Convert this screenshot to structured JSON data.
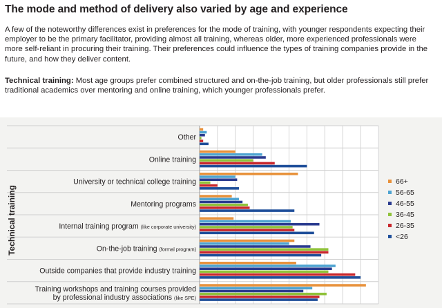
{
  "header": {
    "title": "The mode and method of delivery also varied by age and experience",
    "intro": "A few of the noteworthy differences exist in preferences for the mode of training, with younger respondents expecting their employer to be the primary facilitator, providing almost all training, whereas older, more experienced professionals were more self-reliant in procuring their training. Their preferences could influence the types of training companies provide in the future, and how they deliver content.",
    "technical_label": "Technical training:",
    "technical_text": " Most age groups prefer combined structured and on-the-job training, but older professionals still prefer traditional academics over mentoring and online training, which younger professionals prefer."
  },
  "chart_data": {
    "type": "bar",
    "orientation": "horizontal",
    "title": "",
    "ylabel": "Technical training",
    "xlabel": "",
    "xlim": [
      0,
      100
    ],
    "grid": true,
    "legend_position": "right",
    "categories": [
      {
        "main": "Other",
        "note": ""
      },
      {
        "main": "Online training",
        "note": ""
      },
      {
        "main": "University or technical college training",
        "note": ""
      },
      {
        "main": "Mentoring programs",
        "note": ""
      },
      {
        "main": "Internal training program ",
        "note": "(like corporate university)"
      },
      {
        "main": "On-the-job training ",
        "note": "(formal program)"
      },
      {
        "main": "Outside companies that provide industry training",
        "note": ""
      },
      {
        "main": "Training workshops and training courses provided",
        "note": "",
        "line2": "by professional industry associations ",
        "line2note": "(like SPE)"
      }
    ],
    "series": [
      {
        "name": "66+",
        "color": "#e8913a",
        "values": [
          2,
          20,
          55,
          18,
          19,
          53,
          54,
          93
        ]
      },
      {
        "name": "56-65",
        "color": "#4da3d1",
        "values": [
          4,
          35,
          20,
          22,
          51,
          50,
          76,
          63
        ]
      },
      {
        "name": "46-55",
        "color": "#2a3b8f",
        "values": [
          3,
          37,
          21,
          24,
          67,
          62,
          74,
          58
        ]
      },
      {
        "name": "36-45",
        "color": "#8fc23a",
        "values": [
          1,
          30,
          6,
          27,
          52,
          72,
          72,
          71
        ]
      },
      {
        "name": "26-35",
        "color": "#c8262c",
        "values": [
          2,
          42,
          10,
          28,
          53,
          72,
          87,
          67
        ]
      },
      {
        "name": "<26",
        "color": "#1f4f9a",
        "values": [
          5,
          60,
          22,
          53,
          64,
          68,
          90,
          66
        ]
      }
    ]
  }
}
